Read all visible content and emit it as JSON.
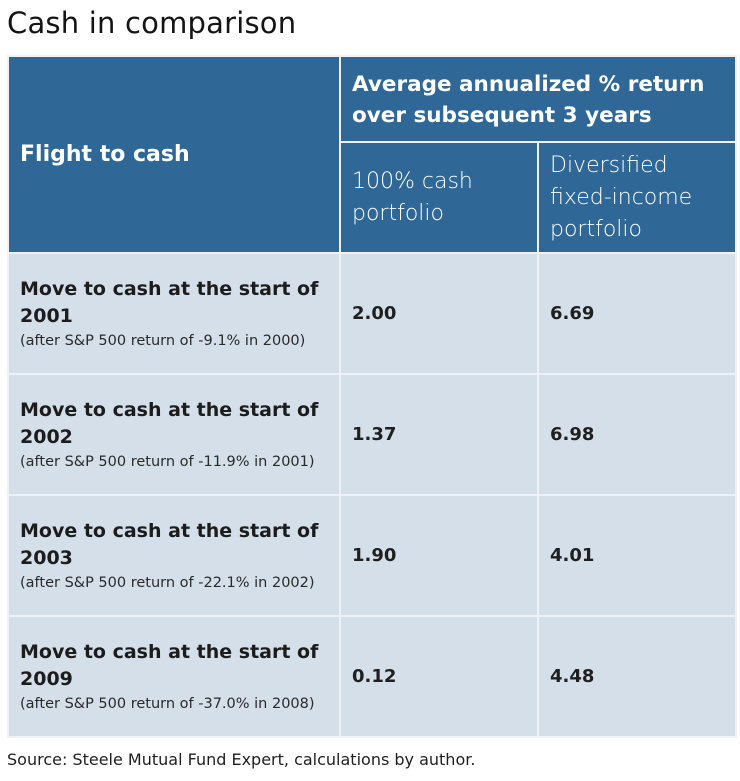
{
  "title": "Cash in comparison",
  "table": {
    "header": {
      "row_label_column": "Flight to cash",
      "group_label": "Average annualized % return over subsequent 3 years",
      "columns": [
        "100% cash portfolio",
        "Diversified fixed-income portfolio"
      ]
    },
    "rows": [
      {
        "label": "Move to cash at the start of 2001",
        "note": "(after S&P 500 return of -9.1% in 2000)",
        "cash": "2.00",
        "fixed_income": "6.69"
      },
      {
        "label": "Move to cash at the start of 2002",
        "note": "(after S&P 500 return of -11.9% in 2001)",
        "cash": "1.37",
        "fixed_income": "6.98"
      },
      {
        "label": "Move to cash at the start of 2003",
        "note": "(after S&P 500 return of -22.1% in 2002)",
        "cash": "1.90",
        "fixed_income": "4.01"
      },
      {
        "label": "Move to cash at the start of 2009",
        "note": "(after S&P 500 return of -37.0% in 2008)",
        "cash": "0.12",
        "fixed_income": "4.48"
      }
    ]
  },
  "source": "Source: Steele Mutual Fund Expert, calculations by author.",
  "colors": {
    "header_bg": "#2f6896",
    "body_bg": "#d5dfe9",
    "grid": "#eef2f6"
  }
}
